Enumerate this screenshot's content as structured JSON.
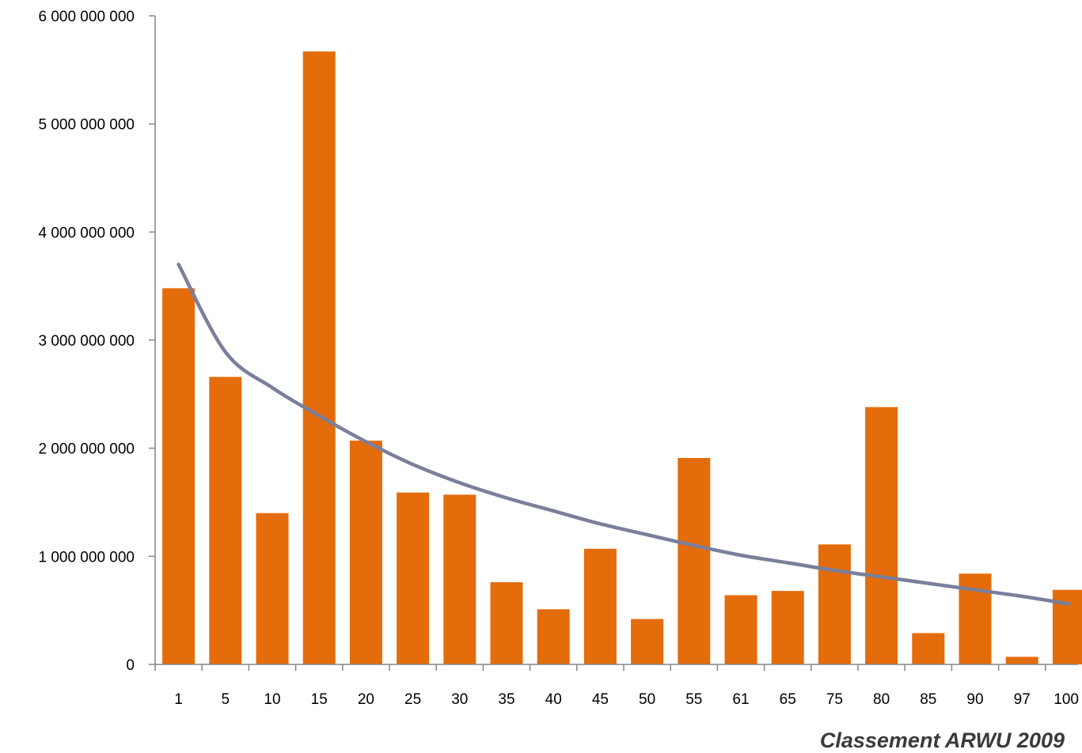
{
  "chart_data": {
    "type": "bar",
    "title": "",
    "xlabel": "Classement ARWU 2009",
    "ylabel": "",
    "categories": [
      "1",
      "5",
      "10",
      "15",
      "20",
      "25",
      "30",
      "35",
      "40",
      "45",
      "50",
      "55",
      "61",
      "65",
      "75",
      "80",
      "85",
      "90",
      "97",
      "100"
    ],
    "series": [
      {
        "values": [
          3480000000,
          2660000000,
          1400000000,
          5670000000,
          2070000000,
          1590000000,
          1570000000,
          760000000,
          510000000,
          1070000000,
          420000000,
          1910000000,
          640000000,
          680000000,
          1110000000,
          2380000000,
          290000000,
          840000000,
          70000000,
          690000000
        ]
      }
    ],
    "trendline": {
      "type": "logarithmic",
      "values": [
        3700000000,
        2890000000,
        2560000000,
        2300000000,
        2060000000,
        1850000000,
        1680000000,
        1540000000,
        1420000000,
        1300000000,
        1200000000,
        1100000000,
        1010000000,
        940000000,
        870000000,
        810000000,
        750000000,
        690000000,
        630000000,
        560000000
      ]
    },
    "ylim": [
      0,
      6000000000
    ],
    "yticks": [
      0,
      1000000000,
      2000000000,
      3000000000,
      4000000000,
      5000000000,
      6000000000
    ],
    "ytick_labels": [
      "0",
      "1 000 000 000",
      "2 000 000 000",
      "3 000 000 000",
      "4 000 000 000",
      "5 000 000 000",
      "6 000 000 000"
    ],
    "grid": false,
    "colors": {
      "bar": "#e46c0a",
      "trendline": "#7a7f9a"
    }
  }
}
